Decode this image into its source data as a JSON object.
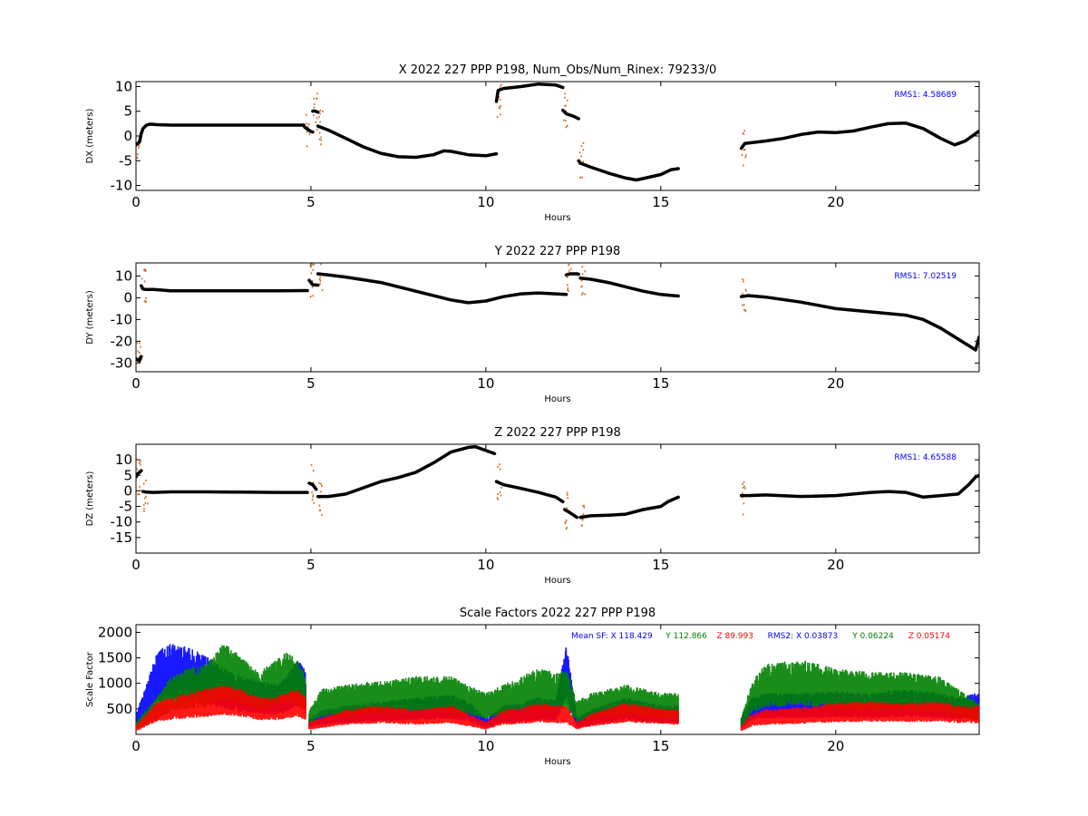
{
  "chart_data": [
    {
      "type": "scatter",
      "title": "X 2022 227 PPP  P198, Num_Obs/Num_Rinex: 79233/0",
      "xlabel": "Hours",
      "ylabel": "DX (meters)",
      "xlim": [
        0,
        24.1
      ],
      "ylim": [
        -11,
        11
      ],
      "xticks": [
        "0",
        "5",
        "10",
        "15",
        "20"
      ],
      "yticks": [
        "10",
        "5",
        "0",
        "-5",
        "-10"
      ],
      "annotation": "RMS1:  4.58689",
      "colors": {
        "points": "#000000",
        "raw": "#d2691e",
        "annotation": "#0000ff"
      },
      "series": [
        {
          "segments": [
            {
              "x": [
                0,
                0.05,
                0.1,
                0.15,
                0.2,
                0.3,
                0.4,
                0.6,
                1.0,
                1.5,
                2.0,
                3.0,
                4.0,
                4.8
              ],
              "y": [
                -1.8,
                -1.5,
                -1.2,
                0.5,
                1.5,
                2.2,
                2.4,
                2.3,
                2.2,
                2.2,
                2.2,
                2.2,
                2.2,
                2.2
              ]
            },
            {
              "x": [
                4.82,
                4.9,
                5.0,
                5.05
              ],
              "y": [
                1.8,
                1.4,
                0.9,
                0.8
              ]
            },
            {
              "x": [
                5.05,
                5.1,
                5.2
              ],
              "y": [
                5.0,
                5.1,
                4.8
              ]
            },
            {
              "x": [
                5.2,
                5.5,
                6.0,
                6.5,
                7.0,
                7.5,
                8.0,
                8.5,
                8.8,
                9.0,
                9.5,
                10.0,
                10.3
              ],
              "y": [
                2.0,
                1.2,
                -0.5,
                -2.2,
                -3.5,
                -4.2,
                -4.3,
                -3.8,
                -3.0,
                -3.1,
                -3.8,
                -4.0,
                -3.6
              ]
            },
            {
              "x": [
                10.3,
                10.35,
                10.5,
                11.0,
                11.5,
                12.0,
                12.2
              ],
              "y": [
                7.0,
                9.2,
                9.6,
                10.0,
                10.5,
                10.3,
                9.8
              ]
            },
            {
              "x": [
                12.2,
                12.3,
                12.5,
                12.65
              ],
              "y": [
                5.2,
                4.5,
                4.0,
                3.5
              ]
            },
            {
              "x": [
                12.65,
                12.7,
                13.0,
                13.5,
                14.0,
                14.3,
                14.5,
                15.0,
                15.3,
                15.5
              ],
              "y": [
                -5.0,
                -5.5,
                -6.3,
                -7.5,
                -8.5,
                -8.9,
                -8.6,
                -7.8,
                -6.8,
                -6.6
              ]
            },
            {
              "x": [
                17.3,
                17.4,
                18.0,
                18.5,
                19.0,
                19.5,
                20.0,
                20.5,
                21.0,
                21.5,
                22.0,
                22.5,
                23.0,
                23.4,
                23.7,
                24.0,
                24.1
              ],
              "y": [
                -2.5,
                -1.5,
                -1.0,
                -0.5,
                0.3,
                0.8,
                0.7,
                1.0,
                1.8,
                2.5,
                2.6,
                1.5,
                -0.5,
                -1.8,
                -1.0,
                0.5,
                1.0
              ]
            }
          ]
        }
      ]
    },
    {
      "type": "scatter",
      "title": "Y 2022 227 PPP  P198",
      "xlabel": "Hours",
      "ylabel": "DY (meters)",
      "xlim": [
        0,
        24.1
      ],
      "ylim": [
        -34,
        16
      ],
      "xticks": [
        "0",
        "5",
        "10",
        "15",
        "20"
      ],
      "yticks": [
        "10",
        "0",
        "-10",
        "-20",
        "-30"
      ],
      "annotation": "RMS1:  7.02519",
      "colors": {
        "points": "#000000",
        "raw": "#d2691e",
        "annotation": "#0000ff"
      },
      "series": [
        {
          "segments": [
            {
              "x": [
                0,
                0.05,
                0.1,
                0.15
              ],
              "y": [
                -28,
                -28.5,
                -29,
                -27
              ]
            },
            {
              "x": [
                0.15,
                0.2,
                0.3,
                0.5,
                1.0,
                2.0,
                3.0,
                4.0,
                4.9
              ],
              "y": [
                5.5,
                4.0,
                3.8,
                3.8,
                3.2,
                3.2,
                3.2,
                3.2,
                3.3
              ]
            },
            {
              "x": [
                4.95,
                5.05,
                5.2
              ],
              "y": [
                8.0,
                6.0,
                5.8
              ]
            },
            {
              "x": [
                5.2,
                5.5,
                6.0,
                7.0,
                8.0,
                9.0,
                9.5,
                10.0,
                10.5,
                11.0,
                11.5,
                12.0,
                12.3
              ],
              "y": [
                11.0,
                10.5,
                9.5,
                7.0,
                3.0,
                -1.0,
                -2.3,
                -1.5,
                0.5,
                1.8,
                2.2,
                1.8,
                1.5
              ]
            },
            {
              "x": [
                12.3,
                12.4,
                12.6,
                12.65
              ],
              "y": [
                10.5,
                11.0,
                11.0,
                10.8
              ]
            },
            {
              "x": [
                12.7,
                13.0,
                13.5,
                14.0,
                14.5,
                15.0,
                15.5
              ],
              "y": [
                9.0,
                8.5,
                7.0,
                5.0,
                3.0,
                1.5,
                0.8
              ]
            },
            {
              "x": [
                17.3,
                17.5,
                18.0,
                19.0,
                20.0,
                21.0,
                22.0,
                22.5,
                23.0,
                23.5,
                24.0,
                24.1
              ],
              "y": [
                0.5,
                1.0,
                0.3,
                -2.0,
                -5.0,
                -6.5,
                -8.0,
                -10.0,
                -14.0,
                -19.0,
                -24.0,
                -18.0
              ]
            }
          ]
        }
      ]
    },
    {
      "type": "scatter",
      "title": "Z 2022 227 PPP  P198",
      "xlabel": "Hours",
      "ylabel": "DZ (meters)",
      "xlim": [
        0,
        24.1
      ],
      "ylim": [
        -20,
        15
      ],
      "xticks": [
        "0",
        "5",
        "10",
        "15",
        "20"
      ],
      "yticks": [
        "10",
        "5",
        "0",
        "-5",
        "-10",
        "-15"
      ],
      "annotation": "RMS1:  4.65588",
      "colors": {
        "points": "#000000",
        "raw": "#d2691e",
        "annotation": "#0000ff"
      },
      "series": [
        {
          "segments": [
            {
              "x": [
                0,
                0.05,
                0.1,
                0.15
              ],
              "y": [
                4.5,
                5.5,
                6.0,
                6.5
              ]
            },
            {
              "x": [
                0.2,
                0.3,
                0.5,
                1.0,
                2.0,
                3.0,
                4.0,
                4.9
              ],
              "y": [
                -0.2,
                -0.4,
                -0.5,
                -0.3,
                -0.3,
                -0.4,
                -0.5,
                -0.5
              ]
            },
            {
              "x": [
                4.95,
                5.05,
                5.15
              ],
              "y": [
                2.5,
                2.0,
                0.5
              ]
            },
            {
              "x": [
                5.2,
                5.5,
                6.0,
                6.5,
                7.0,
                7.5,
                8.0,
                8.5,
                9.0,
                9.5,
                9.7,
                10.0,
                10.25
              ],
              "y": [
                -1.8,
                -1.8,
                -1.0,
                1.0,
                3.0,
                4.3,
                6.0,
                9.0,
                12.5,
                14.0,
                14.2,
                13.0,
                12.0
              ]
            },
            {
              "x": [
                10.3,
                10.5,
                11.0,
                11.5,
                12.0,
                12.2
              ],
              "y": [
                3.0,
                2.0,
                0.8,
                -0.5,
                -2.0,
                -3.5
              ]
            },
            {
              "x": [
                12.25,
                12.4,
                12.6
              ],
              "y": [
                -6.0,
                -7.0,
                -8.5
              ]
            },
            {
              "x": [
                12.7,
                13.0,
                13.5,
                14.0,
                14.5,
                15.0,
                15.2,
                15.5
              ],
              "y": [
                -8.5,
                -8.0,
                -7.8,
                -7.5,
                -6.0,
                -5.0,
                -3.5,
                -2.0
              ]
            },
            {
              "x": [
                17.3,
                17.5,
                18.0,
                19.0,
                20.0,
                21.0,
                21.5,
                22.0,
                22.5,
                23.0,
                23.5,
                23.8,
                24.0,
                24.1
              ],
              "y": [
                -1.5,
                -1.5,
                -1.3,
                -1.8,
                -1.5,
                -0.5,
                -0.2,
                -0.5,
                -2.0,
                -1.5,
                -1.0,
                2.0,
                4.5,
                5.0
              ]
            }
          ]
        }
      ]
    },
    {
      "type": "scatter",
      "title": "Scale Factors 2022 227 PPP  P198",
      "xlabel": "Hours",
      "ylabel": "Scale Factor",
      "xlim": [
        0,
        24.1
      ],
      "ylim": [
        0,
        2150
      ],
      "xticks": [
        "0",
        "5",
        "10",
        "15",
        "20"
      ],
      "yticks": [
        "2000",
        "1500",
        "1000",
        "500"
      ],
      "annotation_parts": [
        {
          "text": "Mean SF: X 118.429",
          "color": "#0000ff"
        },
        {
          "text": "Y 112.866",
          "color": "#008000"
        },
        {
          "text": "Z  89.993",
          "color": "#ff0000"
        },
        {
          "text": "RMS2: X  0.03873",
          "color": "#0000ff"
        },
        {
          "text": "Y  0.06224",
          "color": "#008000"
        },
        {
          "text": "Z  0.05174",
          "color": "#ff0000"
        }
      ],
      "series": [
        {
          "name": "X",
          "color": "#0000ff",
          "segments": [
            {
              "x": [
                0,
                0.3,
                0.6,
                1.0,
                1.5,
                2.0,
                2.5,
                3.0,
                3.5,
                4.0,
                4.3,
                4.6,
                4.85
              ],
              "y": [
                250,
                600,
                1000,
                1100,
                1050,
                950,
                800,
                700,
                650,
                600,
                700,
                900,
                800
              ]
            },
            {
              "x": [
                4.95,
                5.3,
                6.0,
                7.0,
                8.0,
                9.0,
                9.5,
                10.0,
                10.5,
                11.0,
                11.5,
                12.0,
                12.3,
                12.6,
                13.0,
                14.0,
                15.0,
                15.5
              ],
              "y": [
                200,
                300,
                350,
                400,
                450,
                480,
                400,
                200,
                350,
                380,
                450,
                420,
                1100,
                200,
                300,
                450,
                350,
                350
              ]
            },
            {
              "x": [
                17.3,
                17.6,
                18.0,
                19.0,
                20.0,
                21.0,
                22.0,
                23.0,
                23.5,
                24.0,
                24.1
              ],
              "y": [
                200,
                450,
                500,
                500,
                520,
                500,
                550,
                500,
                450,
                500,
                500
              ]
            }
          ]
        },
        {
          "name": "Y",
          "color": "#008000",
          "segments": [
            {
              "x": [
                0,
                0.3,
                0.6,
                1.0,
                1.5,
                2.0,
                2.5,
                3.0,
                3.5,
                4.0,
                4.3,
                4.6,
                4.85
              ],
              "y": [
                150,
                300,
                450,
                700,
                800,
                850,
                1100,
                950,
                750,
                900,
                1000,
                900,
                700
              ]
            },
            {
              "x": [
                4.95,
                5.3,
                6.0,
                7.0,
                8.0,
                9.0,
                9.5,
                10.0,
                10.5,
                11.0,
                11.5,
                12.0,
                12.3,
                12.6,
                13.0,
                14.0,
                15.0,
                15.5
              ],
              "y": [
                300,
                550,
                600,
                650,
                700,
                700,
                600,
                500,
                600,
                700,
                800,
                750,
                800,
                400,
                500,
                600,
                500,
                500
              ]
            },
            {
              "x": [
                17.3,
                17.6,
                18.0,
                19.0,
                20.0,
                21.0,
                22.0,
                23.0,
                23.5,
                24.0,
                24.1
              ],
              "y": [
                200,
                650,
                850,
                900,
                800,
                750,
                750,
                700,
                550,
                400,
                400
              ]
            }
          ]
        },
        {
          "name": "Z",
          "color": "#ff0000",
          "segments": [
            {
              "x": [
                0,
                0.3,
                0.6,
                1.0,
                1.5,
                2.0,
                2.5,
                3.0,
                3.5,
                4.0,
                4.3,
                4.6,
                4.85
              ],
              "y": [
                100,
                250,
                400,
                450,
                500,
                550,
                600,
                550,
                450,
                450,
                500,
                550,
                450
              ]
            },
            {
              "x": [
                4.95,
                5.3,
                6.0,
                7.0,
                8.0,
                9.0,
                9.5,
                10.0,
                10.5,
                11.0,
                11.5,
                12.0,
                12.3,
                12.6,
                13.0,
                14.0,
                15.0,
                15.5
              ],
              "y": [
                150,
                200,
                300,
                350,
                300,
                350,
                250,
                150,
                300,
                320,
                380,
                350,
                350,
                150,
                250,
                380,
                320,
                300
              ]
            },
            {
              "x": [
                17.3,
                17.6,
                18.0,
                19.0,
                20.0,
                21.0,
                22.0,
                23.0,
                23.5,
                24.0,
                24.1
              ],
              "y": [
                100,
                250,
                300,
                330,
                380,
                400,
                380,
                400,
                350,
                350,
                350
              ]
            }
          ]
        }
      ]
    }
  ]
}
